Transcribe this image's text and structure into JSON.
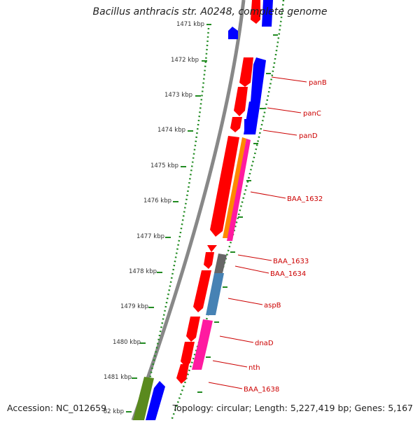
{
  "title": "Bacillus anthracis str. A0248, complete genome",
  "accession": "Accession: NC_012659",
  "summary": "Topology: circular; Length: 5,227,419 bp; Genes: 5,167",
  "ticks": [
    "1471 kbp",
    "1472 kbp",
    "1473 kbp",
    "1474 kbp",
    "1475 kbp",
    "1476 kbp",
    "1477 kbp",
    "1478 kbp",
    "1479 kbp",
    "1480 kbp",
    "1481 kbp",
    "82 kbp"
  ],
  "genes": [
    "panB",
    "panC",
    "panD",
    "BAA_1632",
    "BAA_1633",
    "BAA_1634",
    "aspB",
    "dnaD",
    "nth",
    "BAA_1638"
  ],
  "colors": {
    "feature_red": "#ff0000",
    "feature_blue": "#0000ff",
    "feature_orange": "#ff8800",
    "feature_pink": "#ff1aa0",
    "feature_steelblue": "#4682b4",
    "feature_gray": "#666666",
    "feature_olive": "#5a8a1e",
    "backbone": "#888888",
    "ruler": "#228b22",
    "label": "#cc0000"
  }
}
